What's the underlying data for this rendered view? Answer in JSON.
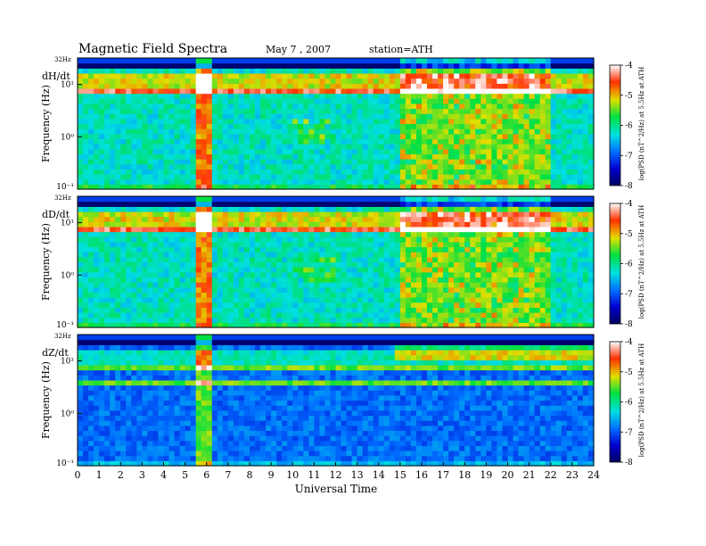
{
  "title": "Magnetic Field Spectra",
  "date": "May 7 , 2007",
  "station": "station=ATH",
  "chart_data": {
    "type": "heatmap",
    "xlabel": "Universal Time",
    "x_ticks": [
      "0",
      "1",
      "2",
      "3",
      "4",
      "5",
      "6",
      "7",
      "8",
      "9",
      "10",
      "11",
      "12",
      "13",
      "14",
      "15",
      "16",
      "17",
      "18",
      "19",
      "20",
      "21",
      "22",
      "23",
      "24"
    ],
    "xlim": [
      0,
      24
    ],
    "ylabel": "Frequency (Hz)",
    "y_scale": "log",
    "ylim": [
      0.1,
      32
    ],
    "y_ticks": [
      "10¹",
      "10⁰",
      "10⁻¹"
    ],
    "y_top_label": "32Hz",
    "panels": [
      {
        "name": "dH/dt"
      },
      {
        "name": "dD/dt"
      },
      {
        "name": "dZ/dt"
      }
    ],
    "colorbar": {
      "label": "log(PSD (nT^2/Hz) at 5.5Hz at ATH",
      "ticks": [
        "-4",
        "-5",
        "-6",
        "-7",
        "-8"
      ],
      "range": [
        -8,
        -4
      ]
    }
  },
  "colors": {
    "scale": [
      "#000060",
      "#0000d0",
      "#0070ff",
      "#00e0e0",
      "#00e040",
      "#e0e000",
      "#ff3000",
      "#ffffff"
    ]
  }
}
